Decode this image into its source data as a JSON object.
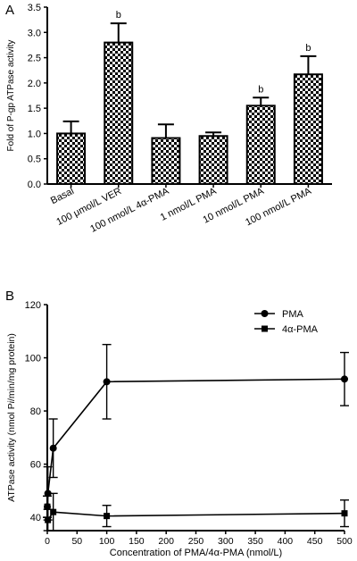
{
  "chart_data": [
    {
      "type": "bar",
      "panel_label": "A",
      "title": "",
      "xlabel": "",
      "ylabel": "Fold of P-gp ATPase activity",
      "ylim": [
        0,
        3.5
      ],
      "yticks": [
        "0.0",
        "0.5",
        "1.0",
        "1.5",
        "2.0",
        "2.5",
        "3.0",
        "3.5"
      ],
      "categories": [
        "Basal",
        "100 μmol/L VER",
        "100 nmol/L 4α-PMA",
        "1 nmol/L PMA",
        "10 nmol/L PMA",
        "100 nmol/L PMA"
      ],
      "values": [
        1.0,
        2.8,
        0.91,
        0.95,
        1.55,
        2.17
      ],
      "errors": [
        0.24,
        0.38,
        0.27,
        0.07,
        0.16,
        0.36
      ],
      "significance": [
        "",
        "b",
        "",
        "",
        "b",
        "b"
      ],
      "bar_fill": "checkerboard",
      "grid": false
    },
    {
      "type": "line",
      "panel_label": "B",
      "title": "",
      "xlabel": "Concentration of PMA/4α-PMA (nmol/L)",
      "ylabel": "ATPase activity (nmol P",
      "ylabel_italic": "i",
      "ylabel_rest": "/min/mg protein)",
      "xlim": [
        0,
        500
      ],
      "ylim": [
        35,
        120
      ],
      "xticks": [
        0,
        50,
        100,
        150,
        200,
        250,
        300,
        350,
        400,
        450,
        500
      ],
      "yticks": [
        40,
        60,
        80,
        100,
        120
      ],
      "legend_position": "top-right",
      "grid": false,
      "series": [
        {
          "name": "PMA",
          "marker": "circle",
          "x": [
            0,
            1,
            10,
            100,
            500
          ],
          "y": [
            44,
            49,
            66,
            91,
            92
          ],
          "errors": [
            4,
            10,
            11,
            14,
            10
          ]
        },
        {
          "name": "4α-PMA",
          "marker": "square",
          "x": [
            0,
            1,
            10,
            100,
            500
          ],
          "y": [
            44,
            39,
            42,
            40.5,
            41.5
          ],
          "errors": [
            4,
            4,
            7,
            4,
            5
          ]
        }
      ]
    }
  ]
}
